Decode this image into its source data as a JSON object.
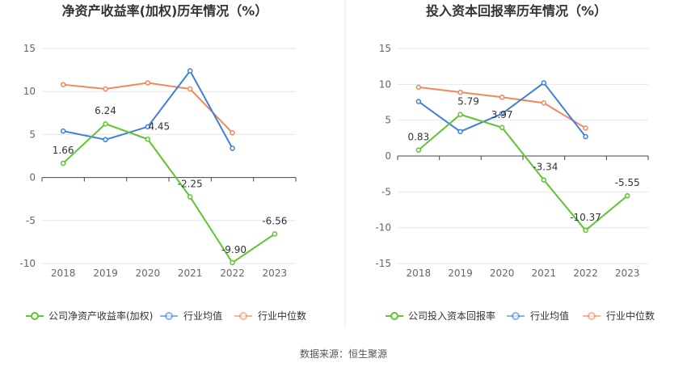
{
  "charts": [
    {
      "title": "净资产收益率(加权)历年情况（%）",
      "legend": [
        "公司净资产收益率(加权)",
        "行业均值",
        "行业中位数"
      ]
    },
    {
      "title": "投入资本回报率历年情况（%）",
      "legend": [
        "公司投入资本回报率",
        "行业均值",
        "行业中位数"
      ]
    }
  ],
  "footer": "数据来源：恒生聚源",
  "colors": {
    "company": "#5ec52f",
    "mean": "#3f7fdc",
    "median": "#f2875a",
    "grid": "#e6e6ee",
    "axis": "#444444"
  },
  "chart_data": [
    {
      "type": "line",
      "title": "净资产收益率(加权)历年情况（%）",
      "categories": [
        "2018",
        "2019",
        "2020",
        "2021",
        "2022",
        "2023"
      ],
      "ylim": [
        -10,
        15
      ],
      "yticks": [
        -10,
        -5,
        0,
        5,
        10,
        15
      ],
      "grid": true,
      "legend_position": "bottom",
      "series": [
        {
          "name": "公司净资产收益率(加权)",
          "values": [
            1.66,
            6.24,
            4.45,
            -2.25,
            -9.9,
            -6.56
          ],
          "labels": [
            "1.66",
            "6.24",
            "4.45",
            "-2.25",
            "-9.90",
            "-6.56"
          ]
        },
        {
          "name": "行业均值",
          "values": [
            5.4,
            4.4,
            5.9,
            12.4,
            3.4,
            null
          ]
        },
        {
          "name": "行业中位数",
          "values": [
            10.8,
            10.3,
            11.0,
            10.3,
            5.2,
            null
          ]
        }
      ]
    },
    {
      "type": "line",
      "title": "投入资本回报率历年情况（%）",
      "categories": [
        "2018",
        "2019",
        "2020",
        "2021",
        "2022",
        "2023"
      ],
      "ylim": [
        -15,
        15
      ],
      "yticks": [
        -15,
        -10,
        -5,
        0,
        5,
        10,
        15
      ],
      "grid": true,
      "legend_position": "bottom",
      "series": [
        {
          "name": "公司投入资本回报率",
          "values": [
            0.83,
            5.79,
            3.97,
            -3.34,
            -10.37,
            -5.55
          ],
          "labels": [
            "0.83",
            "5.79",
            "3.97",
            "-3.34",
            "-10.37",
            "-5.55"
          ]
        },
        {
          "name": "行业均值",
          "values": [
            7.6,
            3.4,
            5.9,
            10.2,
            2.7,
            null
          ]
        },
        {
          "name": "行业中位数",
          "values": [
            9.6,
            8.9,
            8.2,
            7.4,
            3.9,
            null
          ]
        }
      ]
    }
  ]
}
